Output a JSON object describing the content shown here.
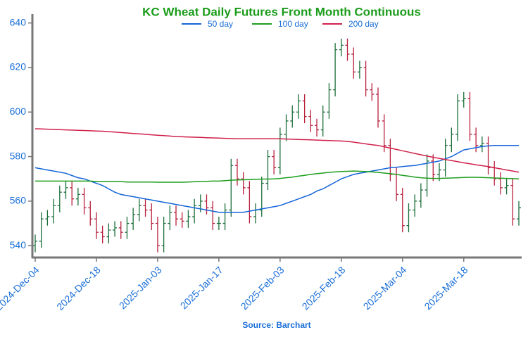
{
  "chart_data": {
    "type": "ohlc",
    "title": "KC Wheat Daily Futures Front Month Continuous",
    "source": "Source: Barchart",
    "categories": [
      "2024-Dec-04",
      null,
      null,
      null,
      null,
      null,
      null,
      null,
      null,
      null,
      "2024-Dec-18",
      null,
      null,
      null,
      null,
      null,
      null,
      null,
      null,
      null,
      "2025-Jan-03",
      null,
      null,
      null,
      null,
      null,
      null,
      null,
      null,
      null,
      "2025-Jan-17",
      null,
      null,
      null,
      null,
      null,
      null,
      null,
      null,
      null,
      "2025-Feb-03",
      null,
      null,
      null,
      null,
      null,
      null,
      null,
      null,
      null,
      "2025-Feb-18",
      null,
      null,
      null,
      null,
      null,
      null,
      null,
      null,
      null,
      "2025-Mar-04",
      null,
      null,
      null,
      null,
      null,
      null,
      null,
      null,
      null,
      "2025-Mar-18",
      null,
      null,
      null,
      null,
      null,
      null,
      null,
      null,
      null
    ],
    "ohlc": {
      "open": [
        540,
        542,
        552,
        553,
        558,
        564,
        566,
        561,
        563,
        557,
        552,
        546,
        544,
        547,
        548,
        546,
        550,
        554,
        558,
        556,
        550,
        540,
        550,
        555,
        552,
        551,
        553,
        558,
        560,
        557,
        550,
        550,
        556,
        576,
        570,
        566,
        553,
        556,
        568,
        580,
        575,
        590,
        596,
        600,
        605,
        598,
        594,
        592,
        600,
        610,
        628,
        630,
        626,
        618,
        620,
        610,
        608,
        596,
        585,
        572,
        563,
        549,
        556,
        560,
        565,
        578,
        572,
        574,
        585,
        590,
        605,
        606,
        590,
        585,
        586,
        575,
        570,
        566,
        567,
        552
      ],
      "high": [
        545,
        555,
        556,
        561,
        567,
        569,
        569,
        566,
        566,
        560,
        555,
        549,
        550,
        551,
        551,
        553,
        557,
        561,
        561,
        559,
        553,
        553,
        558,
        558,
        555,
        556,
        561,
        563,
        563,
        560,
        553,
        559,
        579,
        579,
        573,
        569,
        559,
        571,
        583,
        583,
        593,
        599,
        603,
        608,
        608,
        601,
        597,
        603,
        613,
        631,
        633,
        633,
        629,
        623,
        623,
        613,
        611,
        599,
        588,
        575,
        566,
        559,
        563,
        568,
        581,
        581,
        577,
        588,
        593,
        608,
        609,
        609,
        593,
        589,
        589,
        578,
        573,
        570,
        570,
        560
      ],
      "low": [
        537,
        539,
        549,
        550,
        555,
        561,
        558,
        558,
        554,
        549,
        543,
        541,
        541,
        544,
        543,
        543,
        547,
        551,
        553,
        547,
        537,
        537,
        547,
        549,
        548,
        548,
        550,
        555,
        554,
        547,
        547,
        547,
        553,
        567,
        563,
        550,
        550,
        553,
        565,
        572,
        572,
        587,
        593,
        597,
        595,
        591,
        589,
        589,
        597,
        607,
        625,
        623,
        615,
        615,
        607,
        605,
        593,
        582,
        569,
        560,
        546,
        546,
        553,
        557,
        562,
        569,
        569,
        571,
        582,
        587,
        602,
        587,
        582,
        582,
        572,
        567,
        563,
        563,
        549,
        549
      ],
      "close": [
        542,
        552,
        553,
        558,
        564,
        566,
        561,
        563,
        557,
        552,
        546,
        544,
        547,
        548,
        546,
        550,
        554,
        558,
        556,
        550,
        540,
        550,
        555,
        552,
        551,
        553,
        558,
        560,
        557,
        550,
        550,
        556,
        576,
        570,
        566,
        553,
        556,
        568,
        580,
        575,
        590,
        596,
        600,
        605,
        598,
        594,
        592,
        600,
        610,
        628,
        630,
        626,
        618,
        620,
        610,
        608,
        596,
        585,
        572,
        563,
        549,
        556,
        560,
        565,
        578,
        572,
        574,
        585,
        590,
        605,
        606,
        590,
        585,
        586,
        575,
        570,
        566,
        567,
        552,
        557
      ]
    },
    "up_color": "#1b6e3a",
    "down_color": "#b8203c",
    "series": [
      {
        "name": "50 day",
        "color": "#1565d8",
        "values": [
          575,
          574.5,
          574,
          573.5,
          573,
          572.5,
          571.5,
          570.5,
          570,
          569,
          568,
          567,
          565.5,
          564,
          563,
          562.5,
          562,
          561.5,
          561,
          560.5,
          560,
          559.5,
          559,
          558.5,
          558,
          557.5,
          557,
          556.5,
          556,
          555.5,
          555,
          555,
          555,
          555,
          555,
          555.5,
          556,
          556.5,
          557,
          557.5,
          558,
          559,
          560,
          561,
          562,
          563,
          564.5,
          565.5,
          567,
          568.5,
          570,
          571,
          572,
          572.5,
          573,
          573.5,
          574,
          574.5,
          575,
          575.2,
          575.5,
          575.8,
          576,
          576.5,
          577,
          577.5,
          578,
          579,
          580,
          581.5,
          583,
          583.5,
          584,
          584.5,
          584.8,
          585,
          585,
          585,
          585,
          585
        ]
      },
      {
        "name": "100 day",
        "color": "#1e9e1e",
        "values": [
          569,
          569,
          569,
          569,
          569,
          569,
          569,
          569,
          569,
          569,
          568.8,
          568.8,
          568.8,
          568.8,
          568.8,
          568.6,
          568.6,
          568.6,
          568.6,
          568.6,
          568.5,
          568.5,
          568.5,
          568.5,
          568.5,
          568.6,
          568.7,
          568.8,
          568.9,
          569,
          569,
          569.2,
          569.4,
          569.5,
          569.6,
          569.7,
          569.8,
          569.9,
          569.9,
          570,
          570.2,
          570.5,
          570.8,
          571.2,
          571.6,
          572,
          572.3,
          572.6,
          572.9,
          573.1,
          573.3,
          573.4,
          573.5,
          573.4,
          573.3,
          573.1,
          572.9,
          572.6,
          572.3,
          572,
          571.6,
          571.2,
          570.8,
          570.5,
          570.3,
          570.2,
          570.2,
          570.3,
          570.4,
          570.5,
          570.6,
          570.7,
          570.7,
          570.6,
          570.5,
          570.4,
          570.3,
          570.2,
          570.1,
          570
        ]
      },
      {
        "name": "200 day",
        "color": "#d0204a",
        "values": [
          592.5,
          592.4,
          592.3,
          592.2,
          592.1,
          592,
          591.9,
          591.8,
          591.7,
          591.6,
          591.5,
          591.4,
          591.2,
          591,
          590.8,
          590.6,
          590.4,
          590.2,
          590,
          589.8,
          589.6,
          589.4,
          589.2,
          589,
          588.9,
          588.8,
          588.7,
          588.6,
          588.5,
          588.4,
          588.3,
          588.2,
          588.1,
          588,
          588,
          588,
          588,
          588,
          588,
          588,
          588,
          587.9,
          587.8,
          587.7,
          587.6,
          587.5,
          587.4,
          587.3,
          587.2,
          587.1,
          587,
          586.8,
          586.5,
          586.1,
          585.7,
          585.3,
          585,
          584.4,
          583.8,
          583.2,
          582.6,
          582,
          581.4,
          580.8,
          580.2,
          579.7,
          579.2,
          578.7,
          578.2,
          577.7,
          577.2,
          576.8,
          576.3,
          575.9,
          575.5,
          575,
          574.5,
          574,
          573.5,
          573
        ]
      }
    ],
    "ylim": [
      535,
      644
    ],
    "yticks": [
      540,
      560,
      580,
      600,
      620,
      640
    ],
    "grid": false,
    "legend": "top"
  }
}
